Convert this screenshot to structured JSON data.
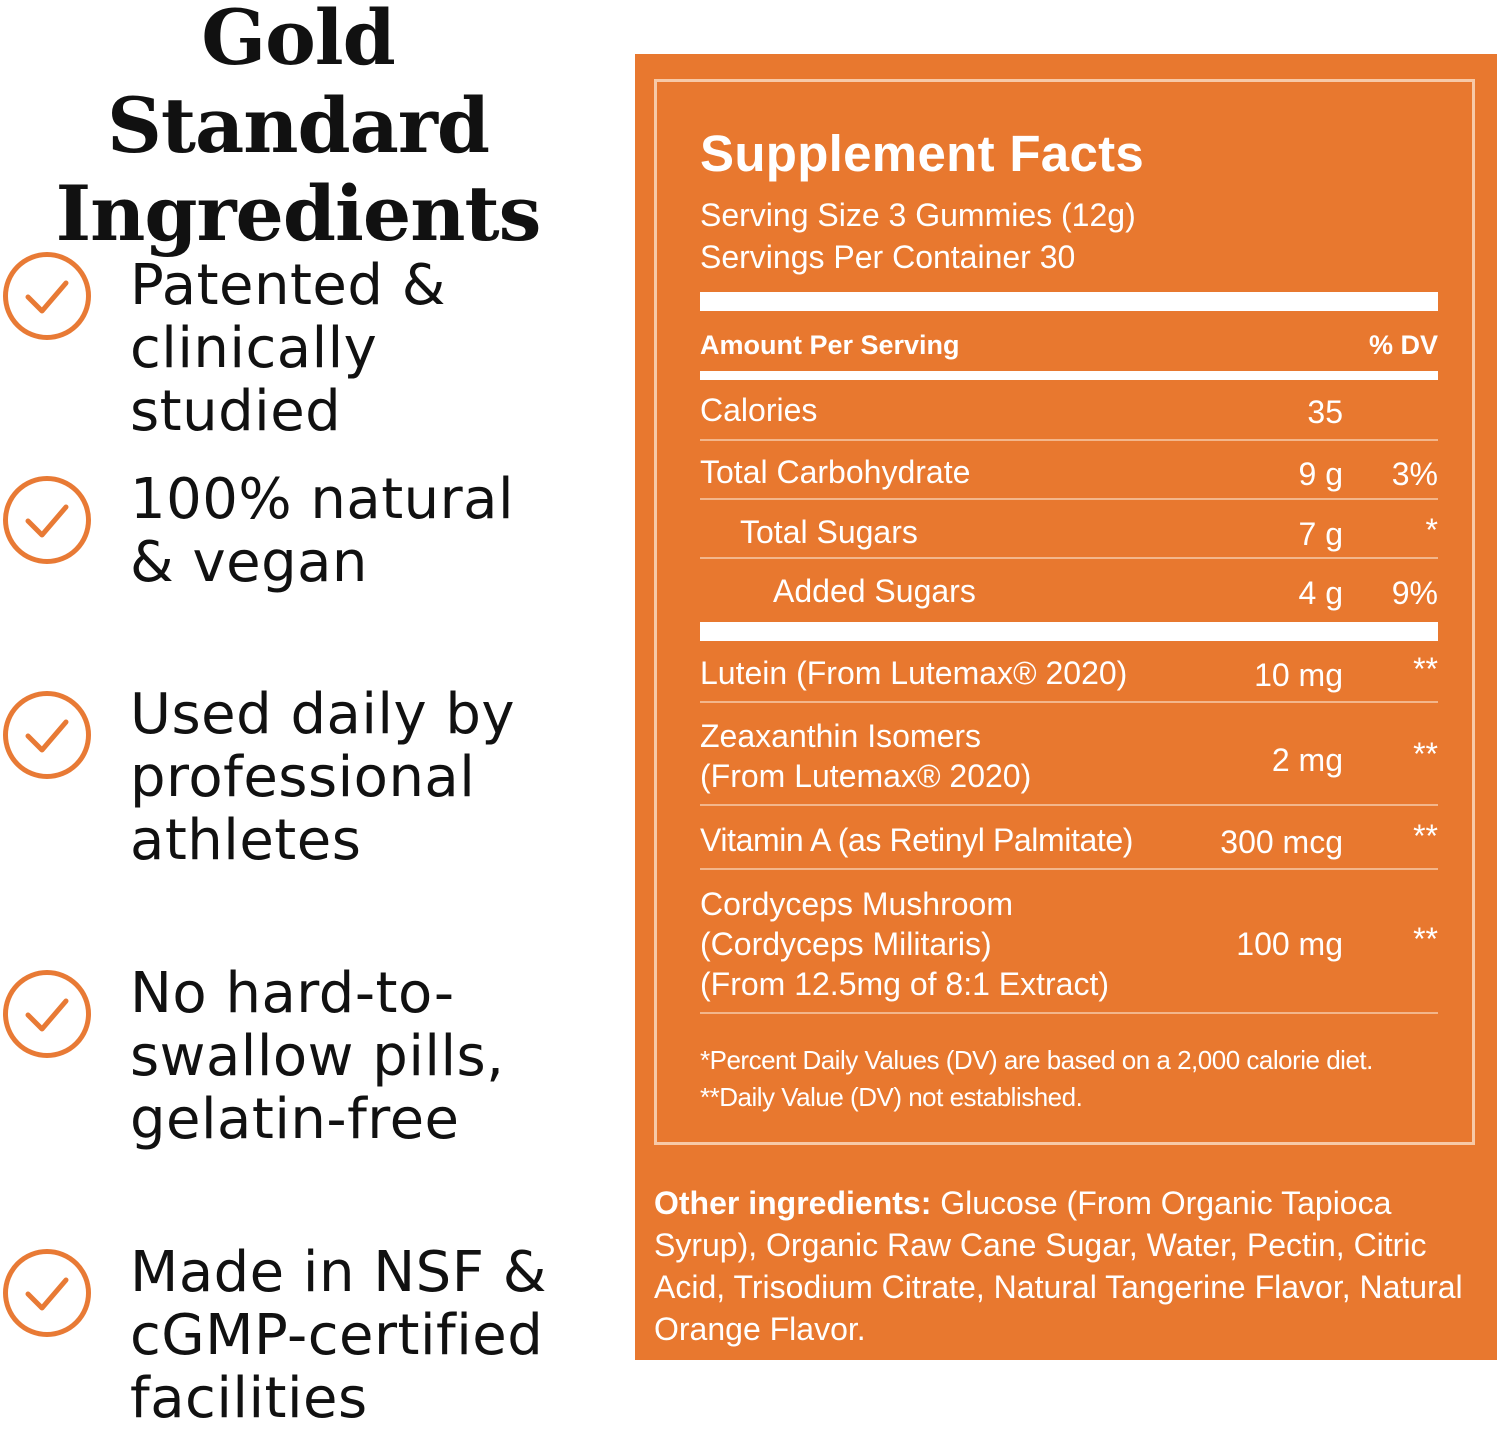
{
  "heading": {
    "line1": "Gold Standard",
    "line2": "Ingredients"
  },
  "features": [
    {
      "icon": "check-circle-icon",
      "text": "Patented &\nclinically studied"
    },
    {
      "icon": "check-circle-icon",
      "text": "100% natural\n& vegan"
    },
    {
      "icon": "check-circle-icon",
      "text": "Used daily by\nprofessional\nathletes"
    },
    {
      "icon": "check-circle-icon",
      "text": "No hard-to-\nswallow pills,\ngelatin-free"
    },
    {
      "icon": "check-circle-icon",
      "text": "Made in NSF &\ncGMP-certified\nfacilities"
    }
  ],
  "colors": {
    "accent": "#e8782f",
    "check": "#e87a35"
  },
  "facts": {
    "title": "Supplement Facts",
    "serving_size": "Serving Size 3 Gummies (12g)",
    "servings_per_container": "Servings Per Container 30",
    "amount_header": "Amount Per Serving",
    "dv_header": "% DV",
    "rows": [
      {
        "name": "Calories",
        "amount": "35",
        "dv": ""
      },
      {
        "name": "Total Carbohydrate",
        "amount": "9 g",
        "dv": "3%"
      },
      {
        "name": "Total Sugars",
        "amount": "7 g",
        "dv": "*"
      },
      {
        "name": "Added Sugars",
        "amount": "4 g",
        "dv": "9%"
      },
      {
        "name": "Lutein (From Lutemax® 2020)",
        "amount": "10 mg",
        "dv": "**"
      },
      {
        "name": "Zeaxanthin Isomers\n(From Lutemax® 2020)",
        "amount": "2 mg",
        "dv": "**"
      },
      {
        "name": "Vitamin A (as Retinyl Palmitate)",
        "amount": "300 mcg",
        "dv": "**"
      },
      {
        "name": "Cordyceps Mushroom\n(Cordyceps Militaris)\n(From 12.5mg of 8:1 Extract)",
        "amount": "100 mg",
        "dv": "**"
      }
    ],
    "footnote1": "*Percent Daily Values (DV) are based on a 2,000 calorie diet.",
    "footnote2": "**Daily Value (DV) not established."
  },
  "other_ingredients": {
    "label": "Other ingredients:",
    "text": " Glucose (From Organic Tapioca Syrup), Organic Raw Cane Sugar, Water, Pectin, Citric Acid, Trisodium Citrate, Natural Tangerine Flavor, Natural Orange Flavor."
  }
}
